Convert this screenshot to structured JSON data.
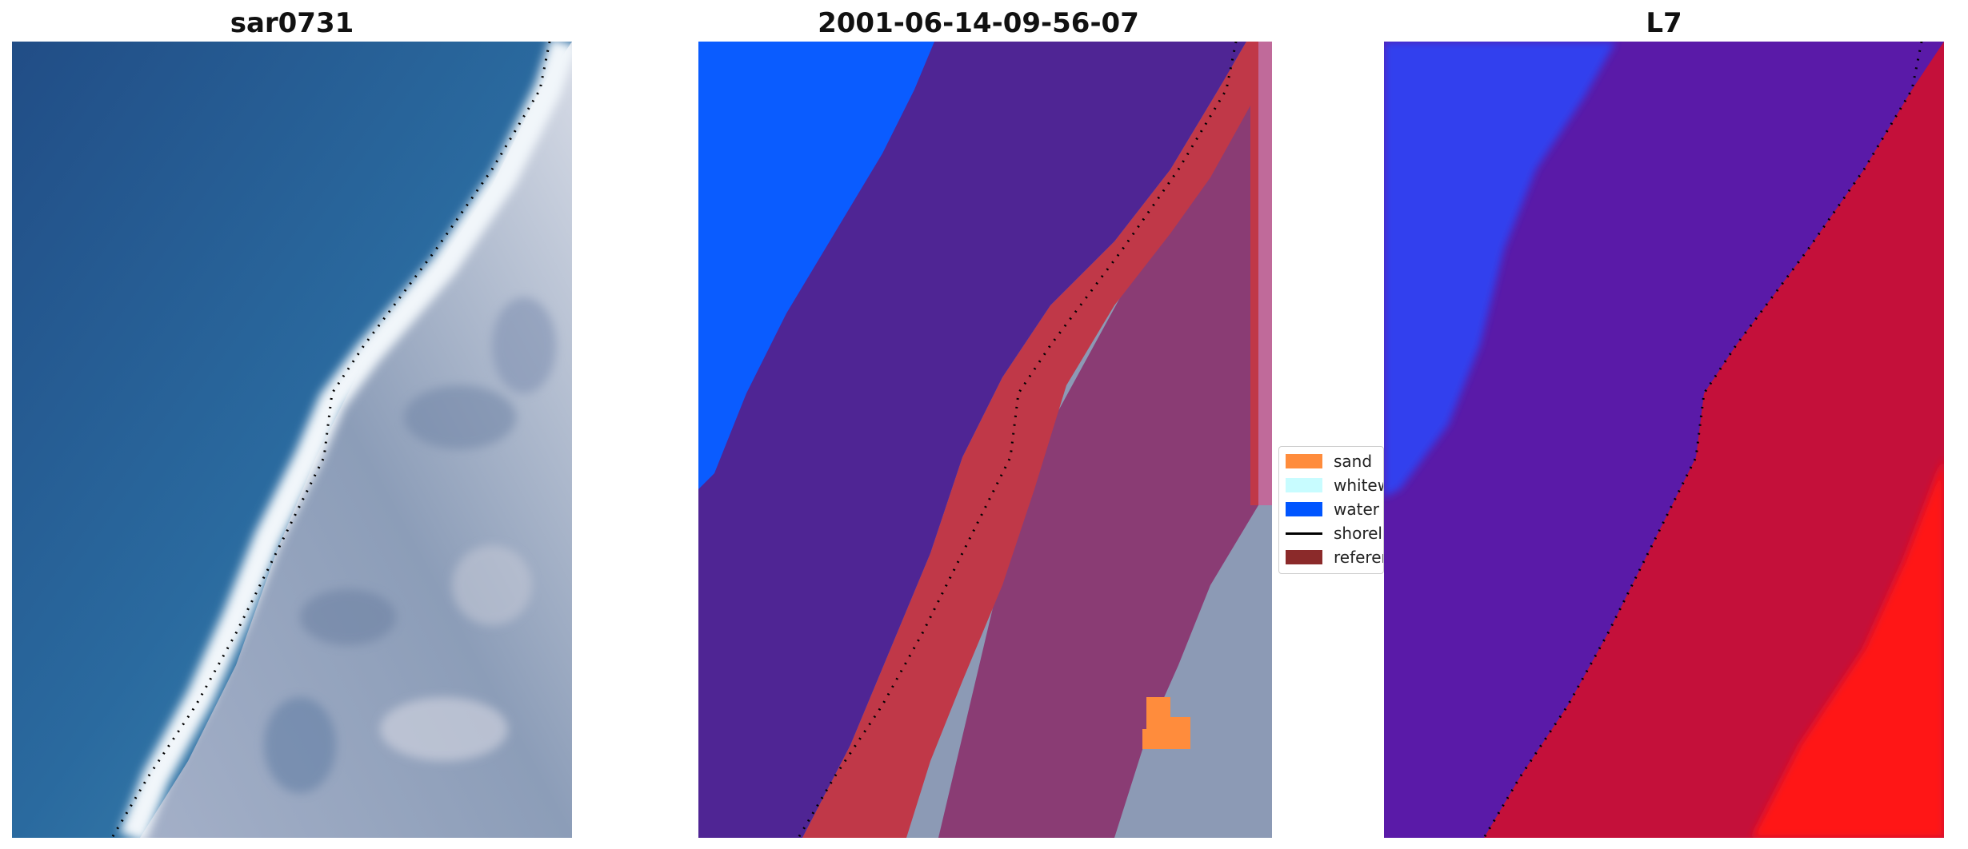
{
  "panels": [
    {
      "title": "sar0731",
      "kind": "rgb-image"
    },
    {
      "title": "2001-06-14-09-56-07",
      "kind": "classified-image"
    },
    {
      "title": "L7",
      "kind": "probability-image"
    }
  ],
  "legend": {
    "items": [
      {
        "label": "sand",
        "color": "#ff8c3c",
        "shape": "patch"
      },
      {
        "label": "whitewater",
        "color": "#c8fcff",
        "shape": "patch"
      },
      {
        "label": "water",
        "color": "#0055ff",
        "shape": "patch"
      },
      {
        "label": "shoreline",
        "color": "#000000",
        "shape": "line"
      },
      {
        "label": "reference shoreline",
        "color": "#8b2a2a",
        "shape": "patch"
      }
    ]
  },
  "colors": {
    "sea_deep": "#245489",
    "sea_light": "#3b87b3",
    "surf": "#f4f8fb",
    "land": "#8e9fb8",
    "class_water": "#0a5cff",
    "class_other": "#4f2594",
    "class_shore": "#c03848",
    "class_landtint": "#8a3c74",
    "prob_blue": "#3040ee",
    "prob_purple": "#5a1aa8",
    "prob_red": "#c4103a",
    "prob_bright": "#ff1818"
  }
}
